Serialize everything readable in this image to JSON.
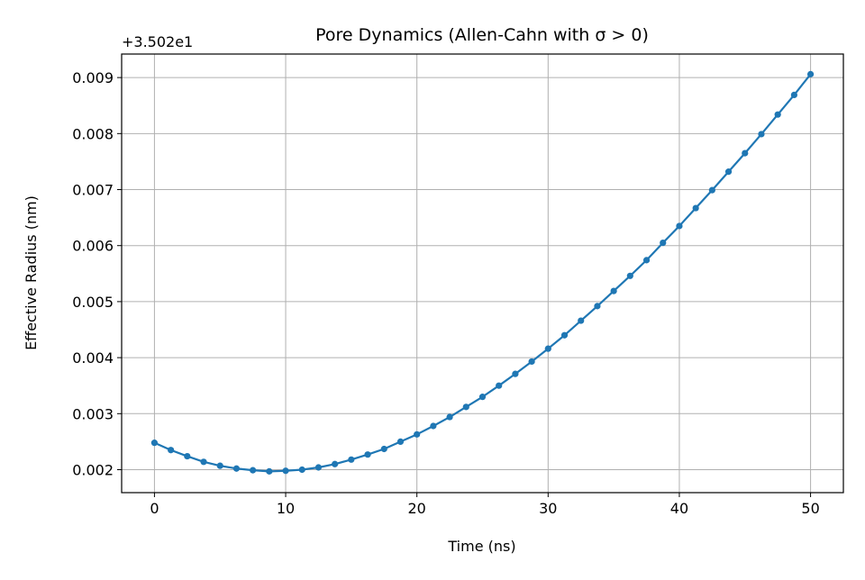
{
  "chart_data": {
    "type": "line",
    "title": "Pore Dynamics (Allen-Cahn with σ > 0)",
    "xlabel": "Time (ns)",
    "ylabel": "Effective Radius (nm)",
    "y_offset_label": "+3.502e1",
    "xlim": [
      -2.5,
      52.5
    ],
    "ylim": [
      0.00159,
      0.00942
    ],
    "xticks": [
      0,
      10,
      20,
      30,
      40,
      50
    ],
    "xtick_labels": [
      "0",
      "10",
      "20",
      "30",
      "40",
      "50"
    ],
    "yticks": [
      0.002,
      0.003,
      0.004,
      0.005,
      0.006,
      0.007,
      0.008,
      0.009
    ],
    "ytick_labels": [
      "0.002",
      "0.003",
      "0.004",
      "0.005",
      "0.006",
      "0.007",
      "0.008",
      "0.009"
    ],
    "grid": true,
    "markers": true,
    "color": "#1f77b4",
    "series": [
      {
        "x": [
          0.0,
          1.25,
          2.5,
          3.75,
          5.0,
          6.25,
          7.5,
          8.75,
          10.0,
          11.25,
          12.5,
          13.75,
          15.0,
          16.25,
          17.5,
          18.75,
          20.0,
          21.25,
          22.5,
          23.75,
          25.0,
          26.25,
          27.5,
          28.75,
          30.0,
          31.25,
          32.5,
          33.75,
          35.0,
          36.25,
          37.5,
          38.75,
          40.0,
          41.25,
          42.5,
          43.75,
          45.0,
          46.25,
          47.5,
          48.75,
          50.0
        ],
        "values": [
          0.00248,
          0.00235,
          0.00224,
          0.00214,
          0.00207,
          0.00202,
          0.00199,
          0.00197,
          0.00198,
          0.002,
          0.00204,
          0.0021,
          0.00218,
          0.00227,
          0.00237,
          0.0025,
          0.00263,
          0.00278,
          0.00294,
          0.00312,
          0.0033,
          0.0035,
          0.00371,
          0.00393,
          0.00416,
          0.0044,
          0.00466,
          0.00492,
          0.00519,
          0.00546,
          0.00574,
          0.00605,
          0.00635,
          0.00667,
          0.00699,
          0.00732,
          0.00765,
          0.00799,
          0.00834,
          0.00869,
          0.00906
        ]
      }
    ]
  }
}
